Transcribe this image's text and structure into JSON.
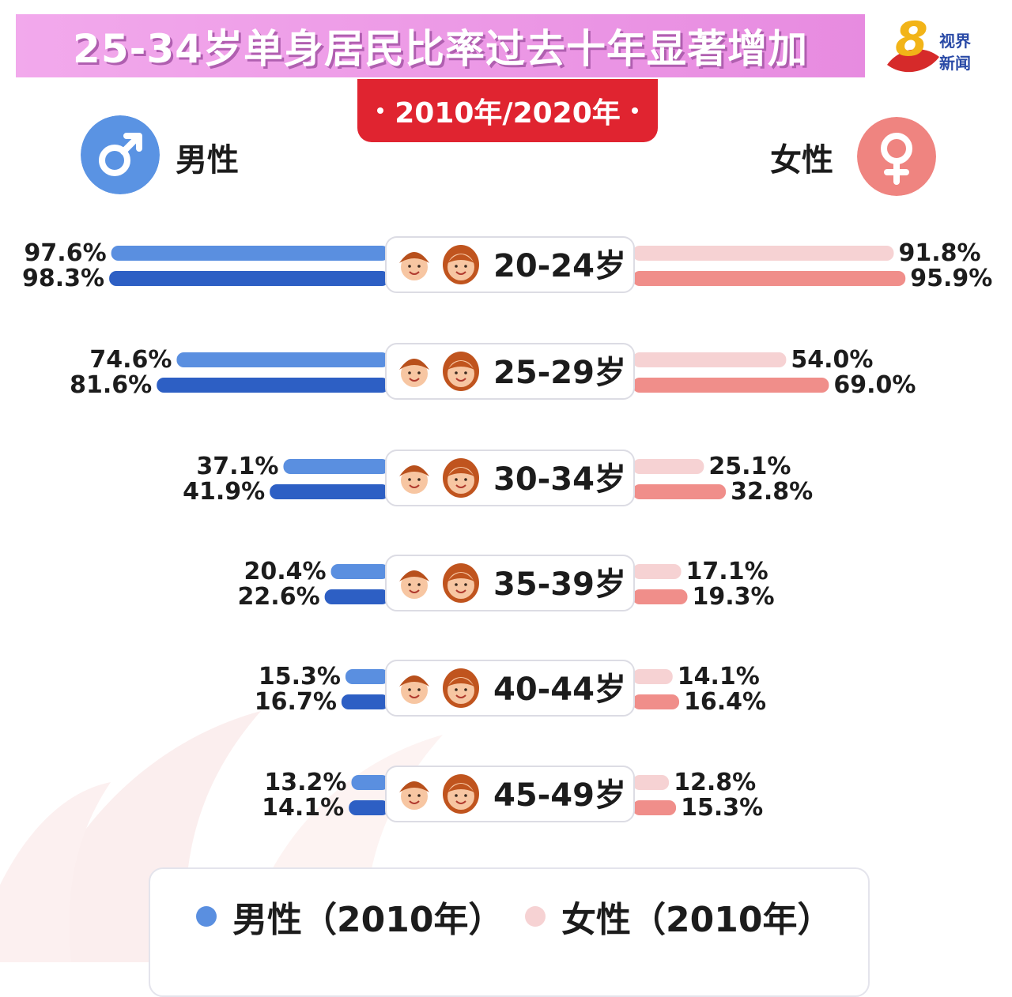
{
  "header": {
    "title": "25-34岁单身居民比率过去十年显著增加",
    "year_badge": "2010年/2020年",
    "logo_line1": "视界",
    "logo_line2": "新闻"
  },
  "genders": {
    "male_label": "男性",
    "female_label": "女性",
    "male_icon": "male-symbol-icon",
    "female_icon": "female-symbol-icon"
  },
  "colors": {
    "male_2010": "#5a8fe0",
    "male_2020": "#2d5fc4",
    "female_2010": "#f6d2d3",
    "female_2020": "#f08e8a",
    "title_bg": "#ec9ae5",
    "badge_bg": "#e02430"
  },
  "legend": [
    {
      "label": "男性（2010年）",
      "color": "#5a8fe0"
    },
    {
      "label": "女性（2010年）",
      "color": "#f6d2d3"
    }
  ],
  "chart_data": {
    "type": "bar",
    "orientation": "horizontal-butterfly",
    "categories": [
      "20-24岁",
      "25-29岁",
      "30-34岁",
      "35-39岁",
      "40-44岁",
      "45-49岁"
    ],
    "series": [
      {
        "name": "男性（2010年）",
        "side": "left",
        "values": [
          97.6,
          74.6,
          37.1,
          20.4,
          15.3,
          13.2
        ],
        "labels": [
          "97.6%",
          "74.6%",
          "37.1%",
          "20.4%",
          "15.3%",
          "13.2%"
        ]
      },
      {
        "side": "left",
        "values": [
          98.3,
          81.6,
          41.9,
          22.6,
          16.7,
          14.1
        ],
        "labels": [
          "98.3%",
          "81.6%",
          "41.9%",
          "22.6%",
          "16.7%",
          "14.1%"
        ]
      },
      {
        "name": "女性（2010年）",
        "side": "right",
        "values": [
          91.8,
          54.0,
          25.1,
          17.1,
          14.1,
          12.8
        ],
        "labels": [
          "91.8%",
          "54.0%",
          "25.1%",
          "17.1%",
          "14.1%",
          "12.8%"
        ]
      },
      {
        "side": "right",
        "values": [
          95.9,
          69.0,
          32.8,
          19.3,
          16.4,
          15.3
        ],
        "labels": [
          "95.9%",
          "69.0%",
          "32.8%",
          "19.3%",
          "16.4%",
          "15.3%"
        ]
      }
    ],
    "xlim": [
      0,
      100
    ],
    "grid": false
  }
}
